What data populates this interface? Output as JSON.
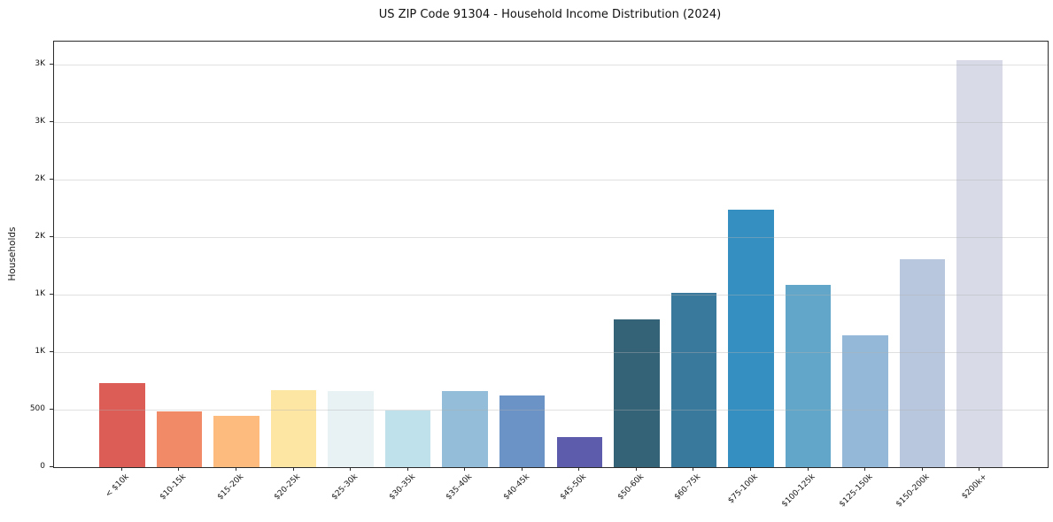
{
  "chart_data": {
    "type": "bar",
    "title": "US ZIP Code 91304 - Household Income Distribution (2024)",
    "xlabel": "",
    "ylabel": "Households",
    "categories": [
      "< $10k",
      "$10-15k",
      "$15-20k",
      "$20-25k",
      "$25-30k",
      "$30-35k",
      "$35-40k",
      "$40-45k",
      "$45-50k",
      "$50-60k",
      "$60-75k",
      "$75-100k",
      "$100-125k",
      "$125-150k",
      "$150-200k",
      "$200k+"
    ],
    "values": [
      730,
      485,
      450,
      670,
      665,
      490,
      660,
      620,
      265,
      1285,
      1515,
      2240,
      1585,
      1150,
      1810,
      3540
    ],
    "bar_colors": [
      "#db5d55",
      "#f18a67",
      "#fdbc7e",
      "#fde5a4",
      "#e8f2f5",
      "#bee1eb",
      "#93bdd8",
      "#6b93c5",
      "#5c5bac",
      "#346377",
      "#38799c",
      "#3590c1",
      "#62a7c9",
      "#93b8d8",
      "#b9c7de",
      "#d8dae8"
    ],
    "ylim": [
      0,
      3700
    ],
    "xlim": [
      -1.19,
      16.19
    ],
    "bar_width_units": 0.8,
    "yticks": {
      "values": [
        0,
        500,
        1000,
        1500,
        2000,
        2500,
        3000,
        3500
      ],
      "labels": [
        "0",
        "500",
        "1K",
        "1K",
        "2K",
        "2K",
        "3K",
        "3K"
      ]
    },
    "grid": "horizontal, drawn over bars",
    "legend": "none",
    "x_tick_rotation_deg": 45,
    "spine_color": "#2b2b2b",
    "background_color": "#ffffff"
  }
}
